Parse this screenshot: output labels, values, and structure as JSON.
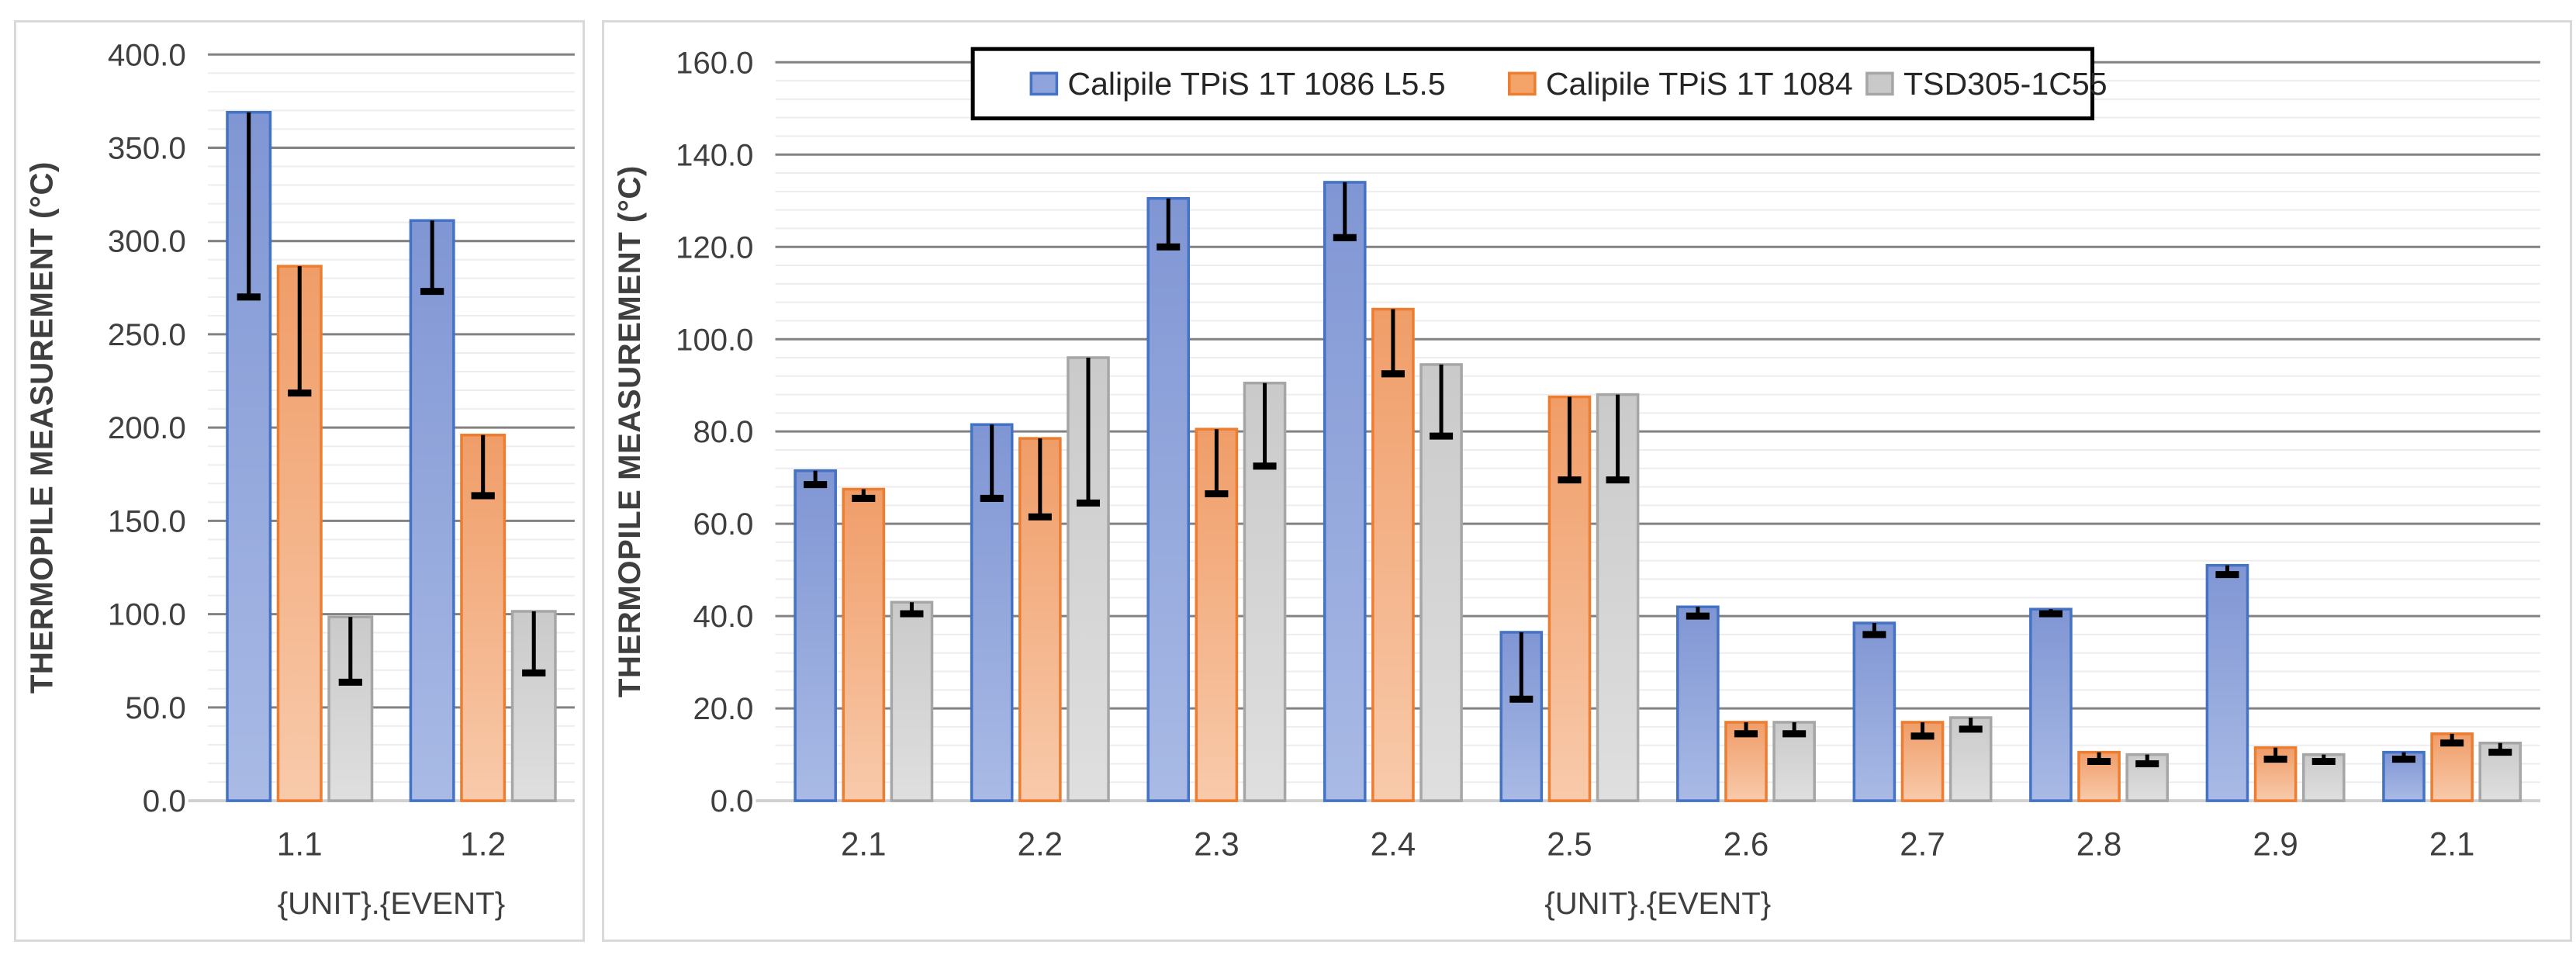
{
  "window": {
    "background": "#FFFFFF"
  },
  "style": {
    "panel_border": "#D9D9D9",
    "text_color": "#3F3F3F",
    "major_gridline": "#828282",
    "minor_gridline": "#EDEDED",
    "axis_line": "#D0D0D0",
    "error_bar_color": "#000000",
    "legend_border": "#000000",
    "legend_background": "#FFFFFF",
    "series_styles": [
      {
        "name": "Calipile TPiS 1T 1086 L5.5",
        "border": "#4472C4",
        "fill_top": "#8096D4",
        "fill_bottom": "#A9BAE5",
        "swatch_fill": "#8FA3DC"
      },
      {
        "name": "Calipile TPiS 1T 1084",
        "border": "#ED7D31",
        "fill_top": "#F09D68",
        "fill_bottom": "#F8CAAB",
        "swatch_fill": "#F4A369"
      },
      {
        "name": "TSD305-1C55",
        "border": "#A6A6A6",
        "fill_top": "#CACACA",
        "fill_bottom": "#DFDFDF",
        "swatch_fill": "#C9C9C9"
      }
    ]
  },
  "chart_data": [
    {
      "type": "bar",
      "title": "",
      "grid": true,
      "legend": {
        "show": false,
        "position": null
      },
      "error_bars": "minus-only",
      "y_axis": {
        "label": "THERMOPILE MEASUREMENT (°C)",
        "min": 0,
        "max": 400,
        "major_step": 50,
        "minor_step": 10,
        "tick_labels": [
          "0.0",
          "50.0",
          "100.0",
          "150.0",
          "200.0",
          "250.0",
          "300.0",
          "350.0",
          "400.0"
        ]
      },
      "x_axis": {
        "label": "{UNIT}.{EVENT}",
        "categories": [
          "1.1",
          "1.2"
        ]
      },
      "series": [
        {
          "name": "Calipile TPiS 1T 1086 L5.5",
          "values": [
            369,
            311
          ],
          "error_minus": [
            99,
            38
          ]
        },
        {
          "name": "Calipile TPiS 1T 1084",
          "values": [
            286.5,
            196
          ],
          "error_minus": [
            68,
            32.5
          ]
        },
        {
          "name": "TSD305-1C55",
          "values": [
            98.5,
            101.5
          ],
          "error_minus": [
            35,
            33
          ]
        }
      ]
    },
    {
      "type": "bar",
      "title": "",
      "grid": true,
      "legend": {
        "show": true,
        "position": "top-center"
      },
      "error_bars": "minus-only",
      "y_axis": {
        "label": "THERMOPILE MEASUREMENT (°C)",
        "min": 0,
        "max": 160,
        "major_step": 20,
        "minor_step": 4,
        "tick_labels": [
          "0.0",
          "20.0",
          "40.0",
          "60.0",
          "80.0",
          "100.0",
          "120.0",
          "140.0",
          "160.0"
        ]
      },
      "x_axis": {
        "label": "{UNIT}.{EVENT}",
        "categories": [
          "2.1",
          "2.2",
          "2.3",
          "2.4",
          "2.5",
          "2.6",
          "2.7",
          "2.8",
          "2.9",
          "2.1"
        ]
      },
      "series": [
        {
          "name": "Calipile TPiS 1T 1086 L5.5",
          "values": [
            71.5,
            81.5,
            130.5,
            134,
            36.5,
            42,
            38.5,
            41.5,
            51,
            10.5
          ],
          "error_minus": [
            3,
            16,
            10.5,
            12,
            14.5,
            2,
            2.5,
            1,
            2,
            1.5
          ]
        },
        {
          "name": "Calipile TPiS 1T 1084",
          "values": [
            67.5,
            78.5,
            80.5,
            106.5,
            87.5,
            17,
            17,
            10.5,
            11.5,
            14.5
          ],
          "error_minus": [
            2,
            17,
            14,
            14,
            18,
            2.5,
            3,
            2,
            2.5,
            2
          ]
        },
        {
          "name": "TSD305-1C55",
          "values": [
            43,
            96,
            90.5,
            94.5,
            88,
            17,
            18,
            10,
            10,
            12.5
          ],
          "error_minus": [
            2.5,
            31.5,
            18,
            15.5,
            18.5,
            2.5,
            2.5,
            2,
            1.5,
            2
          ]
        }
      ]
    }
  ]
}
